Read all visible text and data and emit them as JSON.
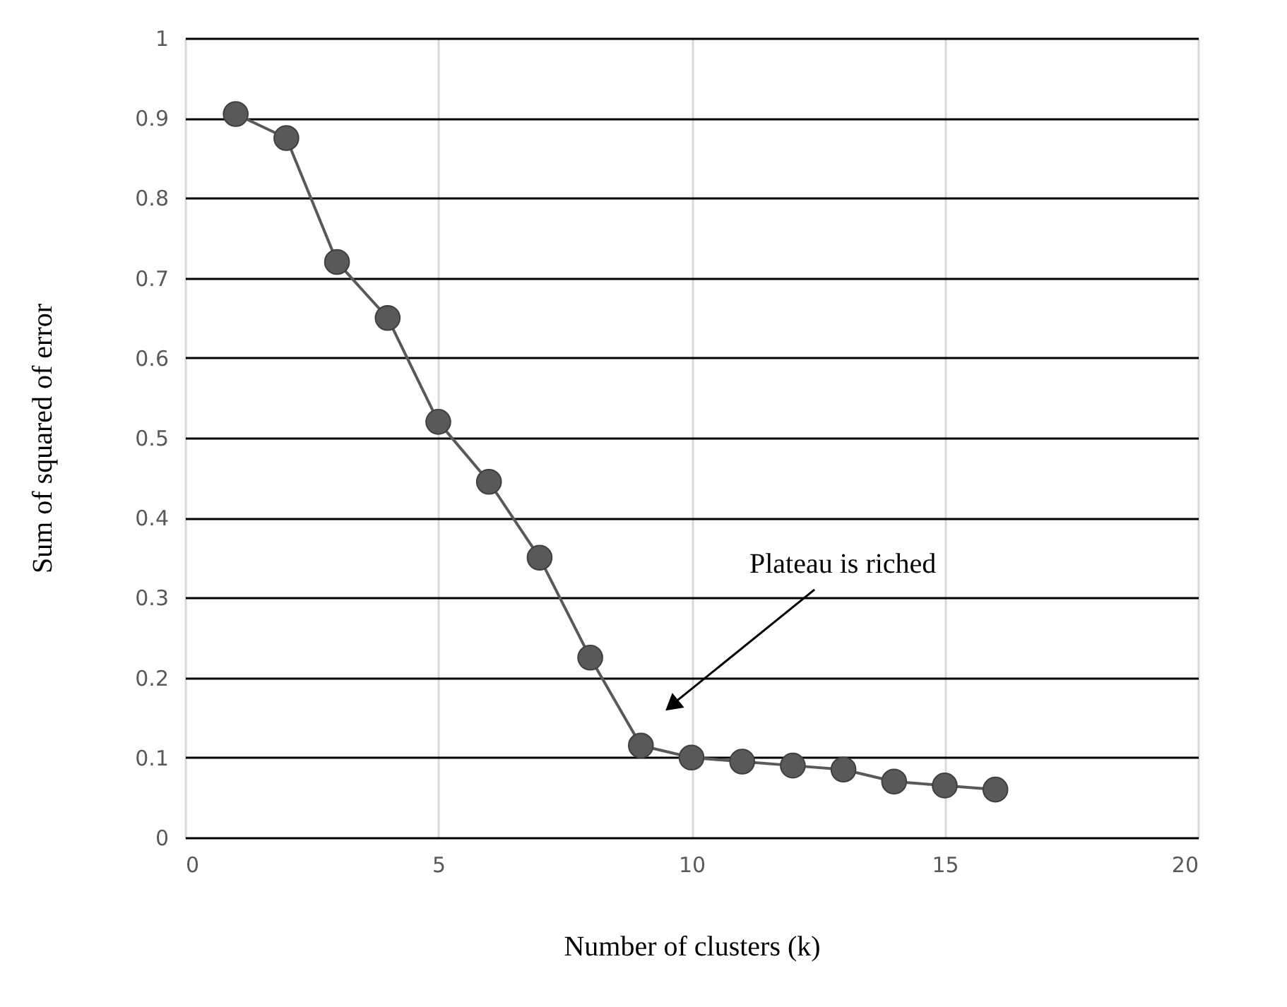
{
  "chart_data": {
    "type": "line",
    "xlabel": "Number of clusters (k)",
    "ylabel": "Sum of squared of error",
    "x": [
      1,
      2,
      3,
      4,
      5,
      6,
      7,
      8,
      9,
      10,
      11,
      12,
      13,
      14,
      15,
      16
    ],
    "series": [
      {
        "color": "#595959",
        "values": [
          0.905,
          0.875,
          0.72,
          0.65,
          0.52,
          0.445,
          0.35,
          0.225,
          0.115,
          0.1,
          0.095,
          0.09,
          0.085,
          0.07,
          0.065,
          0.06
        ]
      }
    ],
    "xlim": [
      0,
      20
    ],
    "xticks": [
      0,
      5,
      10,
      15,
      20
    ],
    "ylim": [
      0,
      1
    ],
    "yticks": [
      0,
      0.1,
      0.2,
      0.3,
      0.4,
      0.5,
      0.6,
      0.7,
      0.8,
      0.9,
      1
    ],
    "grid": true,
    "marker": "circle",
    "line_style": "solid",
    "annotations": [
      "Plateau is riched"
    ]
  }
}
